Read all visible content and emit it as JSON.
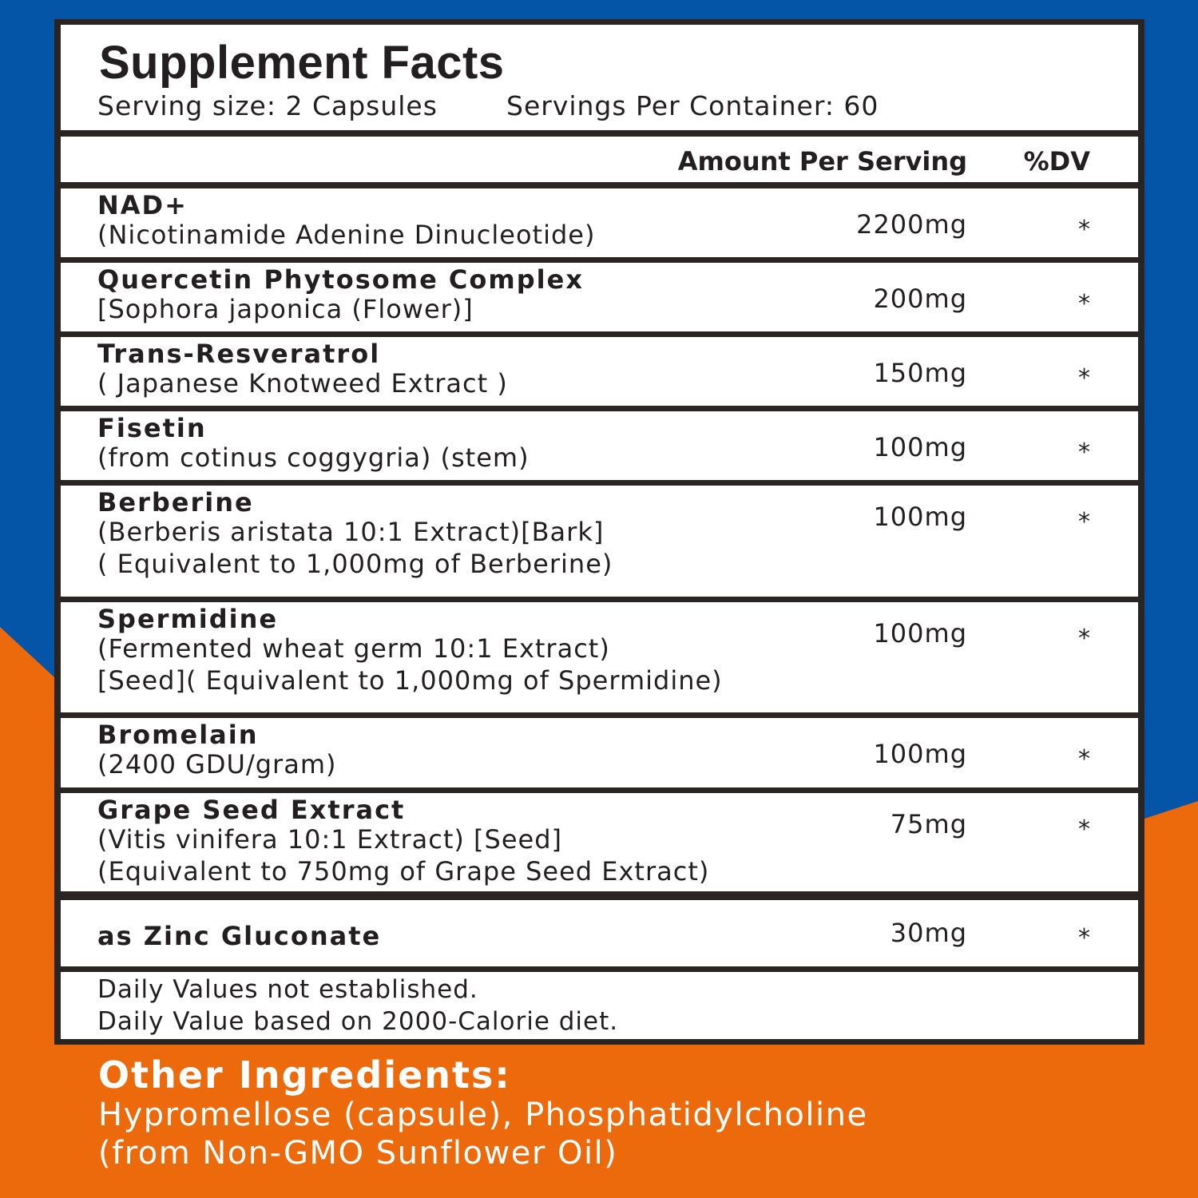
{
  "colors": {
    "top_background": "#0455a8",
    "bottom_background": "#ec6a0c",
    "border": "#2a2422"
  },
  "header": {
    "title": "Supplement Facts",
    "serving_size": "Serving size: 2 Capsules",
    "servings_per_container": "Servings Per Container: 60"
  },
  "columns": {
    "amount": "Amount Per Serving",
    "dv": "%DV"
  },
  "rows": [
    {
      "name": "NAD+",
      "details": [
        "(Nicotinamide Adenine Dinucleotide)"
      ],
      "amount": "2200mg",
      "dv": "*"
    },
    {
      "name": "Quercetin Phytosome Complex",
      "details": [
        "[Sophora japonica (Flower)]"
      ],
      "amount": "200mg",
      "dv": "*"
    },
    {
      "name": "Trans-Resveratrol",
      "details": [
        "( Japanese Knotweed Extract )"
      ],
      "amount": "150mg",
      "dv": "*"
    },
    {
      "name": "Fisetin",
      "details": [
        "(from cotinus coggygria) (stem)"
      ],
      "amount": "100mg",
      "dv": "*"
    },
    {
      "name": "Berberine",
      "details": [
        "(Berberis aristata 10:1 Extract)[Bark]",
        "( Equivalent to 1,000mg of Berberine)"
      ],
      "amount": "100mg",
      "dv": "*"
    },
    {
      "name": "Spermidine",
      "details": [
        "(Fermented wheat germ 10:1 Extract)",
        "[Seed]( Equivalent to 1,000mg of Spermidine)"
      ],
      "amount": "100mg",
      "dv": "*"
    },
    {
      "name": "Bromelain",
      "details": [
        "(2400 GDU/gram)"
      ],
      "amount": "100mg",
      "dv": "*"
    },
    {
      "name": "Grape Seed Extract",
      "details": [
        "(Vitis vinifera 10:1 Extract) [Seed]",
        "(Equivalent to 750mg of Grape Seed Extract)"
      ],
      "amount": "75mg",
      "dv": "*"
    },
    {
      "name": "as Zinc Gluconate",
      "details": [],
      "amount": "30mg",
      "dv": "*"
    }
  ],
  "footer": [
    "Daily Values not established.",
    "Daily Value based on 2000-Calorie diet."
  ],
  "other_ingredients": {
    "heading": "Other Ingredients:",
    "lines": [
      "Hypromellose (capsule), Phosphatidylcholine",
      "(from Non-GMO Sunflower Oil)"
    ]
  }
}
